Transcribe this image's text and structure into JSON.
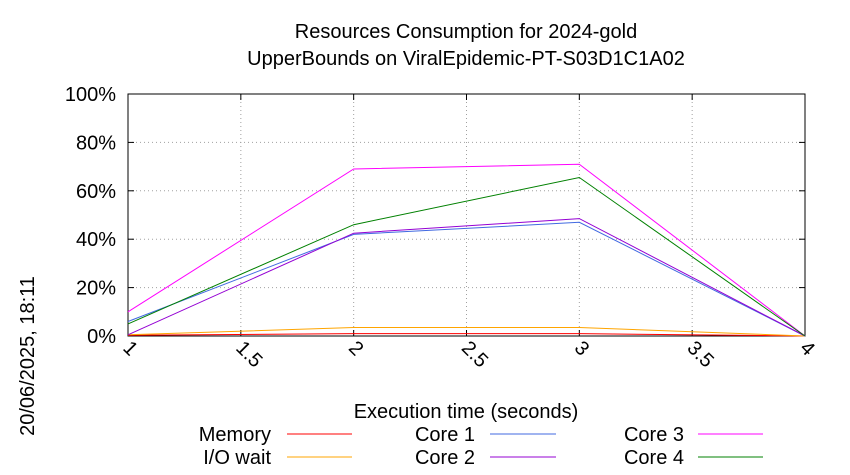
{
  "chart_data": {
    "type": "line",
    "title": "Resources Consumption for 2024-gold",
    "subtitle": "UpperBounds on ViralEpidemic-PT-S03D1C1A02",
    "xlabel": "Execution time (seconds)",
    "ylabel": "",
    "side_label": "20/06/2025, 18:11",
    "xlim": [
      1,
      4
    ],
    "ylim": [
      0,
      100
    ],
    "x_ticks": [
      1,
      1.5,
      2,
      2.5,
      3,
      3.5,
      4
    ],
    "x_tick_labels": [
      "1",
      "1.5",
      "2",
      "2.5",
      "3",
      "3.5",
      "4"
    ],
    "y_ticks": [
      0,
      20,
      40,
      60,
      80,
      100
    ],
    "y_tick_labels": [
      "0%",
      "20%",
      "40%",
      "60%",
      "80%",
      "100%"
    ],
    "grid": true,
    "legend_position": "bottom",
    "series": [
      {
        "name": "Memory",
        "color": "#ff0000",
        "x": [
          1,
          2,
          3,
          4
        ],
        "values": [
          0.3,
          1.0,
          1.0,
          0
        ]
      },
      {
        "name": "I/O wait",
        "color": "#ffa500",
        "x": [
          1,
          2,
          3,
          4
        ],
        "values": [
          0.5,
          3.5,
          3.5,
          0
        ]
      },
      {
        "name": "Core 1",
        "color": "#4169e1",
        "x": [
          1,
          2,
          3,
          4
        ],
        "values": [
          6,
          42,
          47,
          0
        ]
      },
      {
        "name": "Core 2",
        "color": "#9400d3",
        "x": [
          1,
          2,
          3,
          4
        ],
        "values": [
          0.5,
          42.5,
          48.5,
          0
        ]
      },
      {
        "name": "Core 3",
        "color": "#ff00ff",
        "x": [
          1,
          2,
          3,
          4
        ],
        "values": [
          10,
          69,
          71,
          0
        ]
      },
      {
        "name": "Core 4",
        "color": "#008000",
        "x": [
          1,
          2,
          3,
          4
        ],
        "values": [
          5,
          46,
          65.5,
          0
        ]
      }
    ]
  }
}
